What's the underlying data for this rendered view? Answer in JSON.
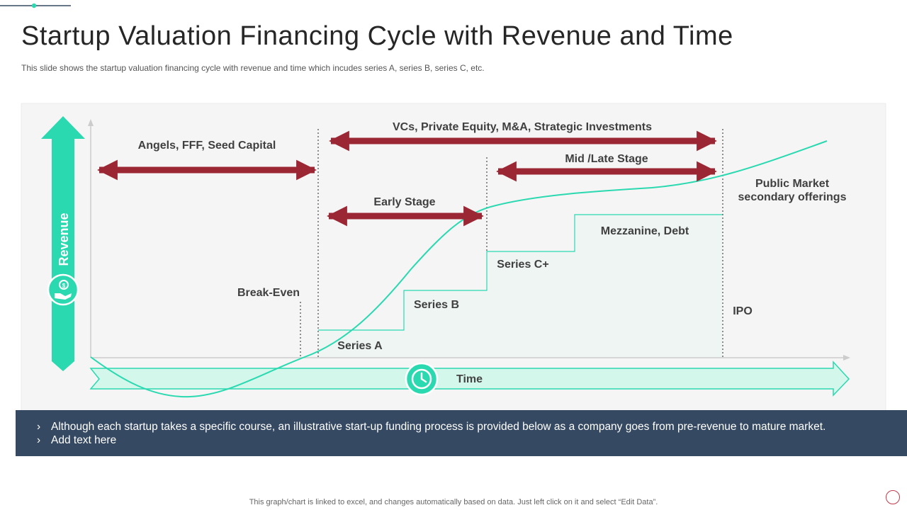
{
  "title": "Startup Valuation Financing Cycle with Revenue and Time",
  "subtitle": "This slide shows the startup valuation  financing  cycle with revenue  and time which incudes series A, series B, series C, etc.",
  "diagram": {
    "revenue_label": "Revenue",
    "time_label": "Time",
    "ranges": {
      "seed": "Angels, FFF, Seed Capital",
      "vc": "VCs, Private Equity, M&A,  Strategic Investments",
      "mid_late": "Mid /Late Stage",
      "early": "Early Stage"
    },
    "stages": {
      "public_market_line1": "Public Market",
      "public_market_line2": "secondary offerings",
      "mezzanine": "Mezzanine, Debt",
      "series_c": "Series C+",
      "series_b": "Series B",
      "series_a": "Series A",
      "break_even": "Break-Even",
      "ipo": "IPO"
    }
  },
  "notes": [
    "Although  each startup  takes a specific course,  an illustrative  start-up  funding  process is provided below as a company  goes from pre-revenue  to mature market.",
    "Add text here"
  ],
  "footer": "This graph/chart is linked to excel,  and changes automatically based on data.  Just left click on it and select “Edit Data”.",
  "colors": {
    "accent": "#2ad9b0",
    "arrow_red": "#9b2734",
    "note_bar": "#354962",
    "panel": "#f5f5f5"
  },
  "icons": [
    "money-hand-icon",
    "clock-icon"
  ]
}
